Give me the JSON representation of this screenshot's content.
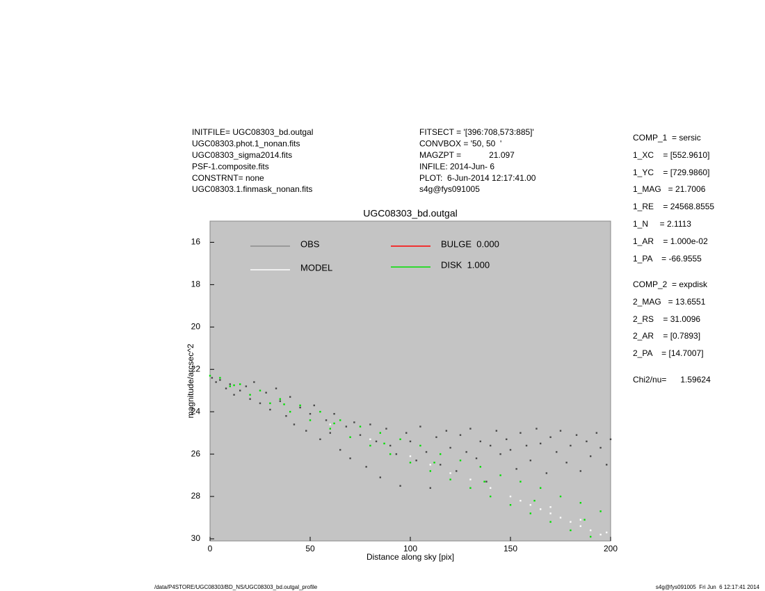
{
  "chart_data": {
    "type": "scatter",
    "title": "UGC08303_bd.outgal",
    "x_label": "Distance along sky [pix]",
    "y_label": "magnitude/arcsec^2",
    "xlim": [
      0,
      200
    ],
    "xticks": [
      0,
      50,
      100,
      150,
      200
    ],
    "ylim": [
      30.1,
      15
    ],
    "yticks": [
      16,
      18,
      20,
      22,
      24,
      26,
      28,
      30
    ],
    "background": "#c4c4c4",
    "series": [
      {
        "name": "OBS",
        "color": "#8c8c8c",
        "marker_color": "#474747",
        "x": [
          1,
          3,
          5,
          8,
          10,
          12,
          15,
          18,
          20,
          22,
          25,
          28,
          30,
          33,
          35,
          38,
          40,
          42,
          45,
          48,
          50,
          52,
          55,
          58,
          60,
          62,
          65,
          68,
          70,
          72,
          75,
          78,
          80,
          83,
          85,
          88,
          90,
          93,
          95,
          98,
          100,
          103,
          105,
          108,
          110,
          113,
          115,
          118,
          120,
          123,
          125,
          128,
          130,
          133,
          135,
          138,
          140,
          143,
          145,
          148,
          150,
          153,
          155,
          158,
          160,
          163,
          165,
          168,
          170,
          173,
          175,
          178,
          180,
          183,
          185,
          188,
          190,
          193,
          195,
          198,
          200
        ],
        "values": [
          22.4,
          22.6,
          22.5,
          22.9,
          22.7,
          23.2,
          23.0,
          22.8,
          23.4,
          22.6,
          23.6,
          23.1,
          23.9,
          22.9,
          23.5,
          24.2,
          23.3,
          24.6,
          23.8,
          24.9,
          24.1,
          23.7,
          25.3,
          24.4,
          25.0,
          24.1,
          25.8,
          24.7,
          26.2,
          24.5,
          25.1,
          26.6,
          24.6,
          25.4,
          27.1,
          24.8,
          25.6,
          26.0,
          27.5,
          25.0,
          25.4,
          26.3,
          24.7,
          25.9,
          27.6,
          25.2,
          26.5,
          24.9,
          25.7,
          26.8,
          25.1,
          25.9,
          24.8,
          26.2,
          25.4,
          27.3,
          25.6,
          24.9,
          26.0,
          25.3,
          25.8,
          26.7,
          25.0,
          25.6,
          26.3,
          24.8,
          25.5,
          26.9,
          25.2,
          25.9,
          24.9,
          26.4,
          25.6,
          25.1,
          26.8,
          25.4,
          26.1,
          25.0,
          25.7,
          26.5,
          25.3
        ]
      },
      {
        "name": "MODEL",
        "color": "#ffffff",
        "x": [
          60,
          80,
          100,
          110,
          120,
          130,
          140,
          150,
          155,
          160,
          165,
          170,
          170,
          175,
          180,
          185,
          185,
          190,
          195,
          198
        ],
        "values": [
          24.6,
          25.3,
          26.1,
          26.5,
          26.9,
          27.2,
          27.6,
          28.0,
          28.2,
          28.4,
          28.6,
          28.8,
          28.5,
          29.0,
          29.2,
          29.4,
          29.1,
          29.6,
          29.8,
          29.7
        ]
      },
      {
        "name": "BULGE  0.000",
        "color": "#ff0000",
        "x": [],
        "values": []
      },
      {
        "name": "DISK  1.000",
        "color": "#00e000",
        "x": [
          0,
          5,
          10,
          12,
          15,
          20,
          25,
          30,
          35,
          37,
          40,
          45,
          50,
          55,
          60,
          62,
          65,
          70,
          75,
          80,
          85,
          87,
          90,
          95,
          100,
          105,
          110,
          112,
          115,
          120,
          125,
          130,
          135,
          137,
          140,
          145,
          150,
          155,
          160,
          162,
          165,
          170,
          175,
          180,
          185,
          187,
          190,
          195
        ],
        "values": [
          22.3,
          22.4,
          22.8,
          22.75,
          22.7,
          23.2,
          23.0,
          23.6,
          23.4,
          23.65,
          24.0,
          23.7,
          24.4,
          24.0,
          24.8,
          24.55,
          24.4,
          25.2,
          24.7,
          25.6,
          25.0,
          25.5,
          26.0,
          25.3,
          26.4,
          25.6,
          26.8,
          26.4,
          26.0,
          27.2,
          26.3,
          27.6,
          26.6,
          27.3,
          28.0,
          27.0,
          28.4,
          27.3,
          28.8,
          28.2,
          27.6,
          29.2,
          28.0,
          29.6,
          28.3,
          29.1,
          29.9,
          28.7
        ]
      }
    ]
  },
  "info_left": [
    "INITFILE= UGC08303_bd.outgal",
    "UGC08303.phot.1_nonan.fits",
    "UGC08303_sigma2014.fits",
    "PSF-1.composite.fits",
    "CONSTRNT= none",
    "UGC08303.1.finmask_nonan.fits"
  ],
  "info_middle": [
    "FITSECT = '[396:708,573:885]'",
    "CONVBOX = '50, 50  '",
    "MAGZPT =            21.097",
    "INFILE: 2014-Jun- 6",
    "PLOT:  6-Jun-2014 12:17:41.00",
    "s4g@fys091005"
  ],
  "parameters": [
    "COMP_1  = sersic",
    "1_XC    = [552.9610]",
    "1_YC    = [729.9860]",
    "1_MAG   = 21.7006",
    "1_RE    = 24568.8555",
    "1_N     = 2.1113",
    "1_AR    = 1.000e-02",
    "1_PA    = -66.9555",
    "COMP_2  = expdisk",
    "2_MAG   = 13.6551",
    "2_RS    = 31.0096",
    "2_AR    = [0.7893]",
    "2_PA    = [14.7007]",
    "Chi2/nu=      1.59624"
  ],
  "footer": {
    "path": "/data/P4STORE/UGC08303/BD_NS/UGC08303_bd.outgal_profile",
    "stamp": "s4g@fys091005  Fri Jun  6 12:17:41 2014"
  }
}
